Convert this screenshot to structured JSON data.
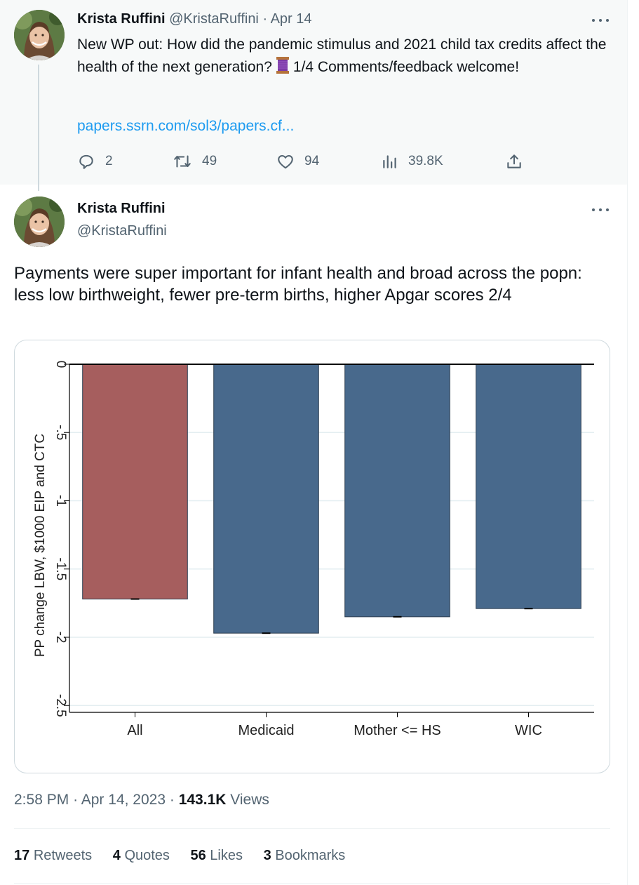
{
  "parent_tweet": {
    "name": "Krista Ruffini",
    "handle": "@KristaRuffini",
    "separator": "·",
    "date": "Apr 14",
    "text_before_emoji": "New WP out: How did the pandemic stimulus and 2021 child tax credits affect the health of the next generation?",
    "emoji_icon": "thread-spool-icon",
    "text_after_emoji": "1/4 Comments/feedback welcome!",
    "link": "papers.ssrn.com/sol3/papers.cf...",
    "actions": {
      "replies": "2",
      "retweets": "49",
      "likes": "94",
      "views": "39.8K"
    }
  },
  "main_tweet": {
    "name": "Krista Ruffini",
    "handle": "@KristaRuffini",
    "text": "Payments were super important for infant health and broad across the popn: less low birthweight, fewer pre-term births, higher Apgar scores 2/4",
    "time": "2:58 PM",
    "separator": "·",
    "date": "Apr 14, 2023",
    "views_count": "143.1K",
    "views_label": "Views",
    "stats": {
      "retweets_count": "17",
      "retweets_label": "Retweets",
      "quotes_count": "4",
      "quotes_label": "Quotes",
      "likes_count": "56",
      "likes_label": "Likes",
      "bookmarks_count": "3",
      "bookmarks_label": "Bookmarks"
    }
  },
  "chart_data": {
    "type": "bar",
    "categories": [
      "All",
      "Medicaid",
      "Mother <= HS",
      "WIC"
    ],
    "values": [
      -1.72,
      -1.97,
      -1.85,
      -1.79
    ],
    "colors": [
      "#a65e5e",
      "#48698c",
      "#48698c",
      "#48698c"
    ],
    "ylabel": "PP change LBW, $1000 EIP and CTC",
    "ylim": [
      -2.55,
      0
    ],
    "yticks": [
      0,
      -0.5,
      -1,
      -1.5,
      -2,
      -2.5
    ],
    "ytick_labels": [
      "0",
      "-.5",
      "-1",
      "-1.5",
      "-2",
      "-2.5"
    ],
    "grid": true
  },
  "colors": {
    "link": "#1d9bf0",
    "secondary_text": "#536471",
    "primary_text": "#0f1419"
  }
}
